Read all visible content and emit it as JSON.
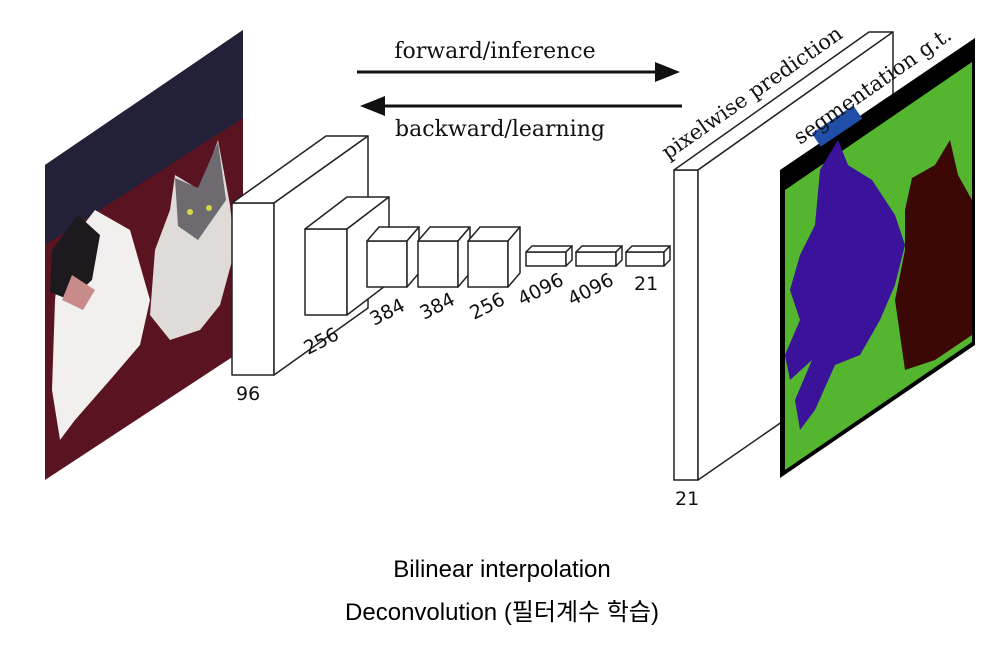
{
  "arrows": {
    "forward": "forward/inference",
    "backward": "backward/learning"
  },
  "output_labels": {
    "prediction": "pixelwise prediction",
    "ground_truth": "segmentation g.t."
  },
  "layers": [
    {
      "name": "conv1",
      "label": "96"
    },
    {
      "name": "conv2",
      "label": "256"
    },
    {
      "name": "conv3",
      "label": "384"
    },
    {
      "name": "conv4",
      "label": "384"
    },
    {
      "name": "conv5",
      "label": "256"
    },
    {
      "name": "fc6",
      "label": "4096"
    },
    {
      "name": "fc7",
      "label": "4096"
    },
    {
      "name": "fc8",
      "label": "21"
    },
    {
      "name": "output",
      "label": "21"
    }
  ],
  "caption": {
    "line1": "Bilinear interpolation",
    "line2": "Deconvolution (필터계수 학습)"
  },
  "colors": {
    "photo_background": "#5a1320",
    "segmentation_background": "#54b52f",
    "segmentation_border": "#000000",
    "dog_class": "#3b139a",
    "cat_class": "#3c0805",
    "legend_swatch": "#1f4fa8"
  }
}
